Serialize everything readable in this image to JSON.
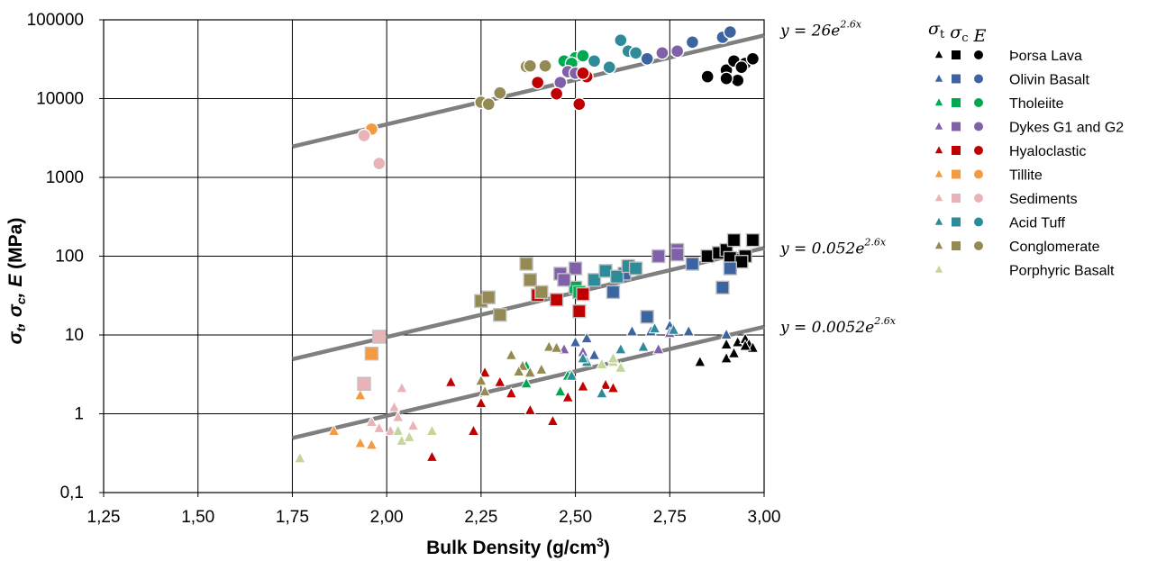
{
  "chart_data": {
    "type": "scatter",
    "xlabel": "Bulk Density (g/cm³)",
    "ylabel": "σt, σc, E (MPa)",
    "xlim": [
      1.25,
      3.0
    ],
    "ylim": [
      0.1,
      100000
    ],
    "yscale": "log",
    "grid": true,
    "x_ticks": [
      "1,25",
      "1,50",
      "1,75",
      "2,00",
      "2,25",
      "2,50",
      "2,75",
      "3,00"
    ],
    "y_ticks": [
      "0,1",
      "1",
      "10",
      "100",
      "1000",
      "10000",
      "100000"
    ],
    "legend_headers": [
      "σt",
      "σc",
      "E"
    ],
    "legend_position": "right",
    "marker_legend": {
      "triangle": "σt",
      "square": "σc",
      "circle": "E"
    },
    "fit_lines": [
      {
        "label": "y = 26e^{2.6x}",
        "label_main": "y = 26e",
        "label_exp": "2.6x",
        "a": 26,
        "b": 2.6,
        "x_range": [
          1.75,
          3.0
        ]
      },
      {
        "label": "y = 0.052e^{2.6x}",
        "label_main": "y = 0.052e",
        "label_exp": "2.6x",
        "a": 0.052,
        "b": 2.6,
        "x_range": [
          1.75,
          3.0
        ]
      },
      {
        "label": "y = 0.0052e^{2.6x}",
        "label_main": "y = 0.0052e",
        "label_exp": "2.6x",
        "a": 0.0052,
        "b": 2.6,
        "x_range": [
          1.75,
          3.0
        ]
      }
    ],
    "series": [
      {
        "name": "Þorsa Lava",
        "color": "#000000",
        "triangle": [
          [
            2.83,
            4.5
          ],
          [
            2.9,
            7.5
          ],
          [
            2.9,
            5
          ],
          [
            2.92,
            5.8
          ],
          [
            2.93,
            8
          ],
          [
            2.95,
            8.8
          ],
          [
            2.96,
            7.5
          ],
          [
            2.97,
            6.8
          ],
          [
            2.95,
            7.2
          ]
        ],
        "square": [
          [
            2.85,
            100
          ],
          [
            2.88,
            110
          ],
          [
            2.9,
            120
          ],
          [
            2.92,
            160
          ],
          [
            2.93,
            90
          ],
          [
            2.95,
            100
          ],
          [
            2.97,
            160
          ],
          [
            2.91,
            95
          ],
          [
            2.94,
            85
          ]
        ],
        "circle": [
          [
            2.85,
            19000
          ],
          [
            2.9,
            23000
          ],
          [
            2.92,
            30000
          ],
          [
            2.93,
            17000
          ],
          [
            2.95,
            28000
          ],
          [
            2.97,
            32000
          ],
          [
            2.9,
            18000
          ],
          [
            2.94,
            25000
          ]
        ]
      },
      {
        "name": "Olivin Basalt",
        "color": "#3c64a0",
        "triangle": [
          [
            2.53,
            9
          ],
          [
            2.65,
            11
          ],
          [
            2.7,
            11
          ],
          [
            2.75,
            13
          ],
          [
            2.8,
            11
          ],
          [
            2.9,
            10
          ],
          [
            2.5,
            8
          ],
          [
            2.55,
            5.5
          ]
        ],
        "square": [
          [
            2.6,
            35
          ],
          [
            2.63,
            60
          ],
          [
            2.69,
            17
          ],
          [
            2.81,
            80
          ],
          [
            2.89,
            40
          ],
          [
            2.91,
            70
          ]
        ],
        "circle": [
          [
            2.69,
            32000
          ],
          [
            2.81,
            52000
          ],
          [
            2.89,
            60000
          ],
          [
            2.91,
            70000
          ]
        ]
      },
      {
        "name": "Tholeiite",
        "color": "#00a850",
        "triangle": [
          [
            2.37,
            4
          ],
          [
            2.46,
            1.9
          ],
          [
            2.48,
            3
          ],
          [
            2.37,
            2.4
          ]
        ],
        "square": [
          [
            2.5,
            40
          ],
          [
            2.51,
            35
          ]
        ],
        "circle": [
          [
            2.47,
            30000
          ],
          [
            2.5,
            33000
          ],
          [
            2.52,
            35000
          ],
          [
            2.49,
            28000
          ]
        ]
      },
      {
        "name": "Dykes G1 and G2",
        "color": "#8060a8",
        "triangle": [
          [
            2.47,
            6.5
          ],
          [
            2.52,
            6
          ],
          [
            2.72,
            6.5
          ],
          [
            2.75,
            10.5
          ]
        ],
        "square": [
          [
            2.46,
            60
          ],
          [
            2.5,
            70
          ],
          [
            2.72,
            100
          ],
          [
            2.77,
            120
          ],
          [
            2.77,
            105
          ],
          [
            2.47,
            50
          ]
        ],
        "circle": [
          [
            2.46,
            16000
          ],
          [
            2.48,
            22000
          ],
          [
            2.5,
            21000
          ],
          [
            2.77,
            40000
          ],
          [
            2.73,
            38000
          ]
        ]
      },
      {
        "name": "Hyaloclastic",
        "color": "#c00000",
        "triangle": [
          [
            2.12,
            0.28
          ],
          [
            2.17,
            2.5
          ],
          [
            2.23,
            0.6
          ],
          [
            2.25,
            1.35
          ],
          [
            2.3,
            2.5
          ],
          [
            2.33,
            1.8
          ],
          [
            2.38,
            1.1
          ],
          [
            2.44,
            0.8
          ],
          [
            2.48,
            1.6
          ],
          [
            2.52,
            2.2
          ],
          [
            2.58,
            2.3
          ],
          [
            2.6,
            2.1
          ],
          [
            2.26,
            3.3
          ]
        ],
        "square": [
          [
            2.4,
            32
          ],
          [
            2.45,
            28
          ],
          [
            2.52,
            33
          ],
          [
            2.51,
            20
          ]
        ],
        "circle": [
          [
            2.4,
            16000
          ],
          [
            2.45,
            11500
          ],
          [
            2.51,
            8500
          ],
          [
            2.53,
            19000
          ],
          [
            2.52,
            21000
          ]
        ]
      },
      {
        "name": "Tillite",
        "color": "#f49a40",
        "triangle": [
          [
            1.86,
            0.6
          ],
          [
            1.93,
            1.7
          ],
          [
            1.93,
            0.42
          ],
          [
            1.96,
            0.4
          ]
        ],
        "square": [
          [
            1.96,
            5.8
          ]
        ],
        "circle": [
          [
            1.96,
            4100
          ]
        ]
      },
      {
        "name": "Sediments",
        "color": "#e8b4b8",
        "triangle": [
          [
            1.96,
            0.78
          ],
          [
            1.98,
            0.65
          ],
          [
            2.01,
            0.6
          ],
          [
            2.02,
            1.2
          ],
          [
            2.03,
            0.9
          ],
          [
            2.04,
            2.1
          ],
          [
            2.07,
            0.7
          ]
        ],
        "square": [
          [
            1.94,
            2.4
          ],
          [
            1.98,
            9.5
          ]
        ],
        "circle": [
          [
            1.94,
            3400
          ],
          [
            1.98,
            1500
          ]
        ]
      },
      {
        "name": "Acid Tuff",
        "color": "#2e8b9a",
        "triangle": [
          [
            2.49,
            3
          ],
          [
            2.53,
            4.5
          ],
          [
            2.57,
            1.8
          ],
          [
            2.62,
            6.5
          ],
          [
            2.68,
            7
          ],
          [
            2.71,
            12
          ],
          [
            2.76,
            11.5
          ],
          [
            2.52,
            5
          ]
        ],
        "square": [
          [
            2.55,
            50
          ],
          [
            2.58,
            65
          ],
          [
            2.61,
            55
          ],
          [
            2.64,
            75
          ],
          [
            2.66,
            70
          ]
        ],
        "circle": [
          [
            2.55,
            30000
          ],
          [
            2.59,
            25000
          ],
          [
            2.62,
            55000
          ],
          [
            2.64,
            40000
          ],
          [
            2.66,
            38000
          ]
        ]
      },
      {
        "name": "Conglomerate",
        "color": "#948a54",
        "triangle": [
          [
            2.25,
            2.6
          ],
          [
            2.26,
            1.9
          ],
          [
            2.33,
            5.5
          ],
          [
            2.36,
            4
          ],
          [
            2.38,
            3.3
          ],
          [
            2.41,
            3.6
          ],
          [
            2.43,
            7
          ],
          [
            2.45,
            6.8
          ],
          [
            2.35,
            3.4
          ]
        ],
        "square": [
          [
            2.25,
            27
          ],
          [
            2.27,
            30
          ],
          [
            2.3,
            18
          ],
          [
            2.37,
            80
          ],
          [
            2.38,
            50
          ],
          [
            2.41,
            35
          ]
        ],
        "circle": [
          [
            2.25,
            9000
          ],
          [
            2.27,
            8500
          ],
          [
            2.3,
            11800
          ],
          [
            2.37,
            25500
          ],
          [
            2.38,
            26000
          ],
          [
            2.42,
            26000
          ]
        ]
      },
      {
        "name": "Porphyric Basalt",
        "color": "#c4d79b",
        "triangle": [
          [
            1.77,
            0.27
          ],
          [
            2.03,
            0.6
          ],
          [
            2.04,
            0.45
          ],
          [
            2.06,
            0.5
          ],
          [
            2.12,
            0.6
          ],
          [
            2.6,
            4.5
          ],
          [
            2.62,
            3.8
          ],
          [
            2.57,
            4.2
          ],
          [
            2.6,
            5
          ]
        ],
        "square": [],
        "circle": []
      }
    ]
  }
}
